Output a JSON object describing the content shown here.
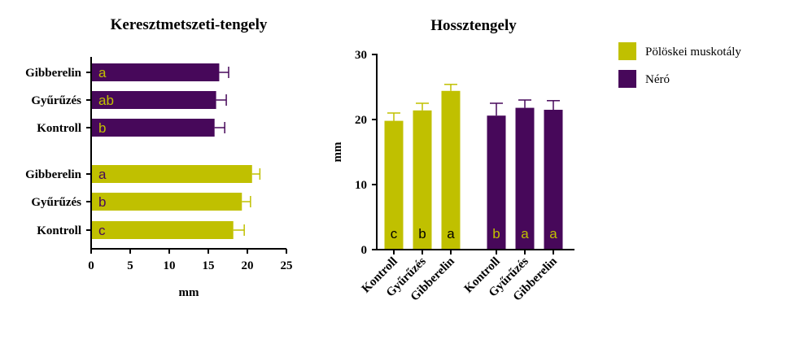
{
  "colors": {
    "olive": "#c0c000",
    "purple": "#47085a"
  },
  "legend": [
    {
      "label": "Pölöskei muskotály",
      "color": "#c0c000"
    },
    {
      "label": "Néró",
      "color": "#47085a"
    }
  ],
  "chart_data": [
    {
      "type": "bar",
      "orientation": "horizontal",
      "title": "Keresztmetszeti-tengely",
      "xlabel": "mm",
      "ylabel": "",
      "xlim": [
        0,
        25
      ],
      "xticks": [
        0,
        5,
        10,
        15,
        20,
        25
      ],
      "groups": [
        {
          "series": "Néró",
          "color": "#47085a",
          "letter_color": "#c0c000",
          "bars": [
            {
              "category": "Gibberelin",
              "value": 16.4,
              "error": 1.2,
              "letter": "a"
            },
            {
              "category": "Gyűrűzés",
              "value": 16.0,
              "error": 1.3,
              "letter": "ab"
            },
            {
              "category": "Kontroll",
              "value": 15.8,
              "error": 1.3,
              "letter": "b"
            }
          ]
        },
        {
          "series": "Pölöskei muskotály",
          "color": "#c0c000",
          "letter_color": "#47085a",
          "bars": [
            {
              "category": "Gibberelin",
              "value": 20.6,
              "error": 1.0,
              "letter": "a"
            },
            {
              "category": "Gyűrűzés",
              "value": 19.3,
              "error": 1.1,
              "letter": "b"
            },
            {
              "category": "Kontroll",
              "value": 18.2,
              "error": 1.4,
              "letter": "c"
            }
          ]
        }
      ]
    },
    {
      "type": "bar",
      "orientation": "vertical",
      "title": "Hossztengely",
      "xlabel": "",
      "ylabel": "mm",
      "ylim": [
        0,
        30
      ],
      "yticks": [
        0,
        10,
        20,
        30
      ],
      "groups": [
        {
          "series": "Pölöskei muskotály",
          "color": "#c0c000",
          "letter_color": "#000000",
          "bars": [
            {
              "category": "Kontroll",
              "value": 19.8,
              "error": 1.2,
              "letter": "c"
            },
            {
              "category": "Gyűrűzés",
              "value": 21.4,
              "error": 1.1,
              "letter": "b"
            },
            {
              "category": "Gibberelin",
              "value": 24.4,
              "error": 1.0,
              "letter": "a"
            }
          ]
        },
        {
          "series": "Néró",
          "color": "#47085a",
          "letter_color": "#c0c000",
          "bars": [
            {
              "category": "Kontroll",
              "value": 20.6,
              "error": 1.9,
              "letter": "b"
            },
            {
              "category": "Gyűrűzés",
              "value": 21.8,
              "error": 1.2,
              "letter": "a"
            },
            {
              "category": "Gibberelin",
              "value": 21.5,
              "error": 1.4,
              "letter": "a"
            }
          ]
        }
      ]
    }
  ]
}
